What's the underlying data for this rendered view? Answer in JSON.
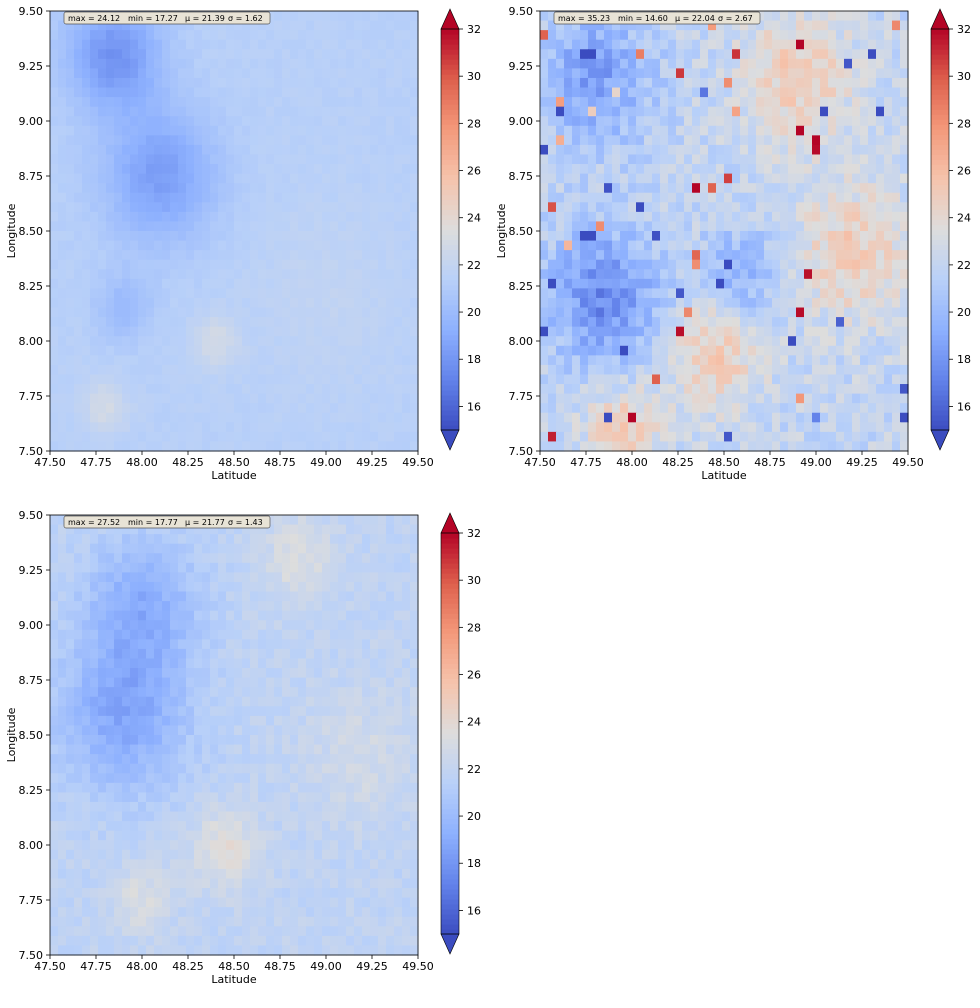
{
  "chart_data": [
    {
      "type": "heatmap",
      "title": "",
      "xlabel": "Latitude",
      "ylabel": "Longitude",
      "xlim": [
        47.5,
        49.5
      ],
      "ylim": [
        7.5,
        9.5
      ],
      "x_ticks": [
        47.5,
        47.75,
        48.0,
        48.25,
        48.5,
        48.75,
        49.0,
        49.25,
        49.5
      ],
      "y_ticks": [
        7.5,
        7.75,
        8.0,
        8.25,
        8.5,
        8.75,
        9.0,
        9.25,
        9.5
      ],
      "x_tick_labels": [
        "47.50",
        "47.75",
        "48.00",
        "48.25",
        "48.50",
        "48.75",
        "49.00",
        "49.25",
        "49.50"
      ],
      "y_tick_labels": [
        "7.50",
        "7.75",
        "8.00",
        "8.25",
        "8.50",
        "8.75",
        "9.00",
        "9.25",
        "9.50"
      ],
      "stats": {
        "max": "max = 24.12",
        "min": "min = 17.27",
        "mean": "μ = 21.39",
        "std": "σ = 1.62"
      },
      "colormap": "coolwarm",
      "colorbar": {
        "vmin": 15,
        "vmax": 32,
        "ticks": [
          16,
          18,
          20,
          22,
          24,
          26,
          28,
          30,
          32
        ],
        "extend": "both"
      },
      "grid": false,
      "field_style": "smooth",
      "hotspots": [
        {
          "x": 47.85,
          "y": 9.3,
          "v": -3.5,
          "s": 0.25
        },
        {
          "x": 48.1,
          "y": 8.75,
          "v": -3.0,
          "s": 0.3
        },
        {
          "x": 47.9,
          "y": 8.15,
          "v": -1.5,
          "s": 0.15
        },
        {
          "x": 48.4,
          "y": 8.0,
          "v": 1.5,
          "s": 0.12
        },
        {
          "x": 47.8,
          "y": 7.7,
          "v": 1.5,
          "s": 0.12
        },
        {
          "x": 49.0,
          "y": 8.2,
          "v": 0.5,
          "s": 0.4
        }
      ],
      "base": 21.4,
      "noise": 0.2
    },
    {
      "type": "heatmap",
      "title": "",
      "xlabel": "Latitude",
      "ylabel": "Longitude",
      "xlim": [
        47.5,
        49.5
      ],
      "ylim": [
        7.5,
        9.5
      ],
      "x_ticks": [
        47.5,
        47.75,
        48.0,
        48.25,
        48.5,
        48.75,
        49.0,
        49.25,
        49.5
      ],
      "y_ticks": [
        7.5,
        7.75,
        8.0,
        8.25,
        8.5,
        8.75,
        9.0,
        9.25,
        9.5
      ],
      "x_tick_labels": [
        "47.50",
        "47.75",
        "48.00",
        "48.25",
        "48.50",
        "48.75",
        "49.00",
        "49.25",
        "49.50"
      ],
      "y_tick_labels": [
        "7.50",
        "7.75",
        "8.00",
        "8.25",
        "8.50",
        "8.75",
        "9.00",
        "9.25",
        "9.50"
      ],
      "stats": {
        "max": "max = 35.23",
        "min": "min = 14.60",
        "mean": "μ = 22.04",
        "std": "σ = 2.67"
      },
      "colormap": "coolwarm",
      "colorbar": {
        "vmin": 15,
        "vmax": 32,
        "ticks": [
          16,
          18,
          20,
          22,
          24,
          26,
          28,
          30,
          32
        ],
        "extend": "both"
      },
      "grid": false,
      "field_style": "pixel",
      "hotspots": [
        {
          "x": 47.85,
          "y": 8.2,
          "v": -4.5,
          "s": 0.3
        },
        {
          "x": 47.8,
          "y": 9.2,
          "v": -3.5,
          "s": 0.3
        },
        {
          "x": 48.6,
          "y": 8.3,
          "v": -3.0,
          "s": 0.2
        },
        {
          "x": 48.9,
          "y": 9.2,
          "v": 3.0,
          "s": 0.3
        },
        {
          "x": 49.2,
          "y": 8.4,
          "v": 3.0,
          "s": 0.3
        },
        {
          "x": 48.45,
          "y": 7.95,
          "v": 3.0,
          "s": 0.25
        },
        {
          "x": 47.95,
          "y": 7.6,
          "v": 3.0,
          "s": 0.2
        }
      ],
      "base": 22.0,
      "noise": 1.2
    },
    {
      "type": "heatmap",
      "title": "",
      "xlabel": "Latitude",
      "ylabel": "Longitude",
      "xlim": [
        47.5,
        49.5
      ],
      "ylim": [
        7.5,
        9.5
      ],
      "x_ticks": [
        47.5,
        47.75,
        48.0,
        48.25,
        48.5,
        48.75,
        49.0,
        49.25,
        49.5
      ],
      "y_ticks": [
        7.5,
        7.75,
        8.0,
        8.25,
        8.5,
        8.75,
        9.0,
        9.25,
        9.5
      ],
      "x_tick_labels": [
        "47.50",
        "47.75",
        "48.00",
        "48.25",
        "48.50",
        "48.75",
        "49.00",
        "49.25",
        "49.50"
      ],
      "y_tick_labels": [
        "7.50",
        "7.75",
        "8.00",
        "8.25",
        "8.50",
        "8.75",
        "9.00",
        "9.25",
        "9.50"
      ],
      "stats": {
        "max": "max = 27.52",
        "min": "min = 17.77",
        "mean": "μ = 21.77",
        "std": "σ = 1.43"
      },
      "colormap": "coolwarm",
      "colorbar": {
        "vmin": 15,
        "vmax": 32,
        "ticks": [
          16,
          18,
          20,
          22,
          24,
          26,
          28,
          30,
          32
        ],
        "extend": "both"
      },
      "grid": false,
      "field_style": "mixed",
      "hotspots": [
        {
          "x": 47.9,
          "y": 8.6,
          "v": -3.0,
          "s": 0.35
        },
        {
          "x": 48.0,
          "y": 9.1,
          "v": -2.5,
          "s": 0.3
        },
        {
          "x": 48.45,
          "y": 7.98,
          "v": 2.0,
          "s": 0.18
        },
        {
          "x": 48.0,
          "y": 7.75,
          "v": 1.5,
          "s": 0.15
        },
        {
          "x": 48.85,
          "y": 9.3,
          "v": 1.5,
          "s": 0.2
        },
        {
          "x": 49.2,
          "y": 8.4,
          "v": 1.0,
          "s": 0.3
        }
      ],
      "base": 21.8,
      "noise": 0.5
    }
  ]
}
